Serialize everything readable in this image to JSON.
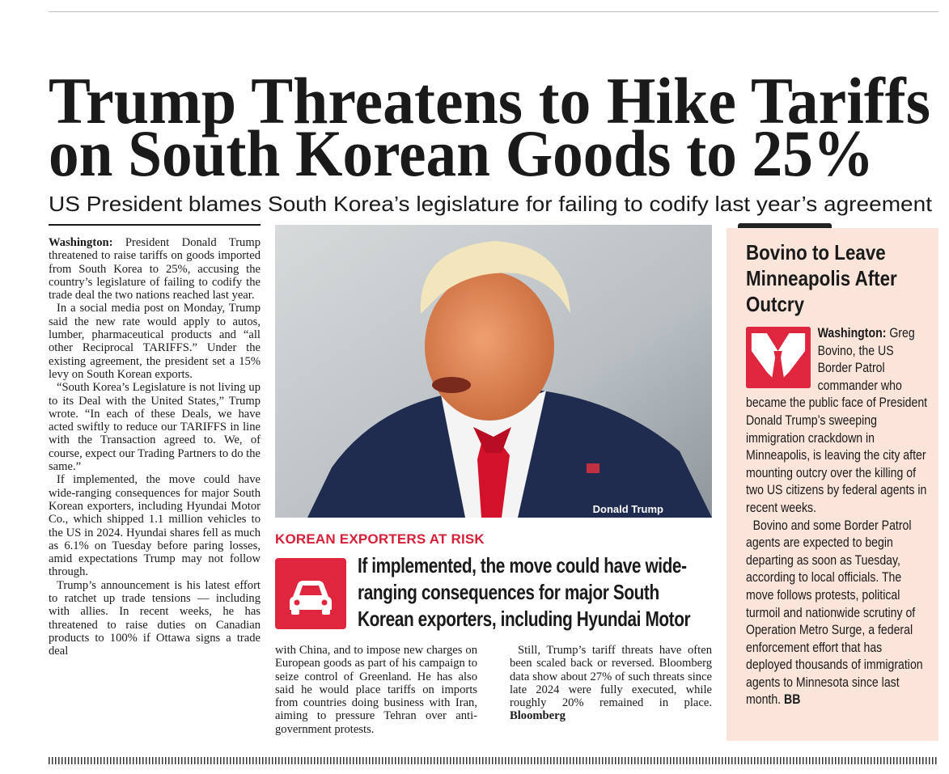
{
  "headline": {
    "line1": "Trump Threatens to Hike Tariffs",
    "line2": "on South Korean Goods to 25%"
  },
  "subheadline": "US President blames South Korea’s legislature for failing to codify last year’s agreement",
  "left_column": {
    "paragraphs": [
      {
        "lead": "Washington:",
        "text": "President Donald Trump threatened to raise tariffs on goods imported from South Korea to 25%, accusing the country’s legislature of failing to codify the trade deal the two nations reached last year."
      },
      {
        "text": "In a social media post on Monday, Trump said the new rate would apply to autos, lumber, pharmaceutical products and “all other Reciprocal TARIFFS.” Under the existing agreement, the president set a 15% levy on South Korean exports."
      },
      {
        "text": "“South Korea’s Legislature is not living up to its Deal with the United States,” Trump wrote. “In each of these Deals, we have acted swiftly to reduce our TARIFFS in line with the Transaction agreed to. We, of course, expect our Trading Partners to do the same.”"
      },
      {
        "text": "If implemented, the move could have wide-ranging consequences for major South Korean exporters, including Hyundai Motor Co., which shipped 1.1 million vehicles to the US in 2024. Hyundai shares fell as much as 6.1% on Tuesday before paring losses, amid expectations Trump may not follow through."
      },
      {
        "text": "Trump’s announcement is his latest effort to ratchet up trade tensions — including with allies. In recent weeks, he has threatened to raise duties on Canadian products to 100% if Ottawa signs a trade deal"
      }
    ]
  },
  "photo": {
    "caption": "Donald Trump"
  },
  "kicker": "KOREAN EXPORTERS AT RISK",
  "pull_quote": "If implemented, the move could have wide-ranging consequences for major South Korean exporters, including Hyundai Motor",
  "continuation": {
    "paragraphs": [
      {
        "text": "with China, and to impose new charges on European goods as part of his campaign to seize control of Greenland. He has also said he would place tariffs on imports from countries doing business with Iran, aiming to pressure Tehran over anti-government protests."
      },
      {
        "text": "Still, Trump’s tariff threats have often been scaled back or reversed. Bloomberg data show about 27% of such threats since late 2024 were fully executed, while roughly 20% remained in place.",
        "byline": "Bloomberg"
      }
    ]
  },
  "sidebar": {
    "title": "Bovino to Leave Minneapolis After Outcry",
    "paragraphs": [
      {
        "lead": "Washington:",
        "text": "Greg Bovino, the US Border Patrol commander who became the public face of President Donald Trump’s sweeping immigration crackdown in Minneapolis, is leaving the city after mounting outcry over the killing of two US citizens by federal agents in recent weeks."
      },
      {
        "text": "Bovino and some Border Patrol agents are expected to begin departing as soon as Tuesday, according to local officials. The move follows protests, political turmoil and nationwide scrutiny of Operation Metro Surge, a federal enforcement effort that has deployed thousands of immigration agents to Minnesota since last month.",
        "byline": "BB"
      }
    ]
  }
}
